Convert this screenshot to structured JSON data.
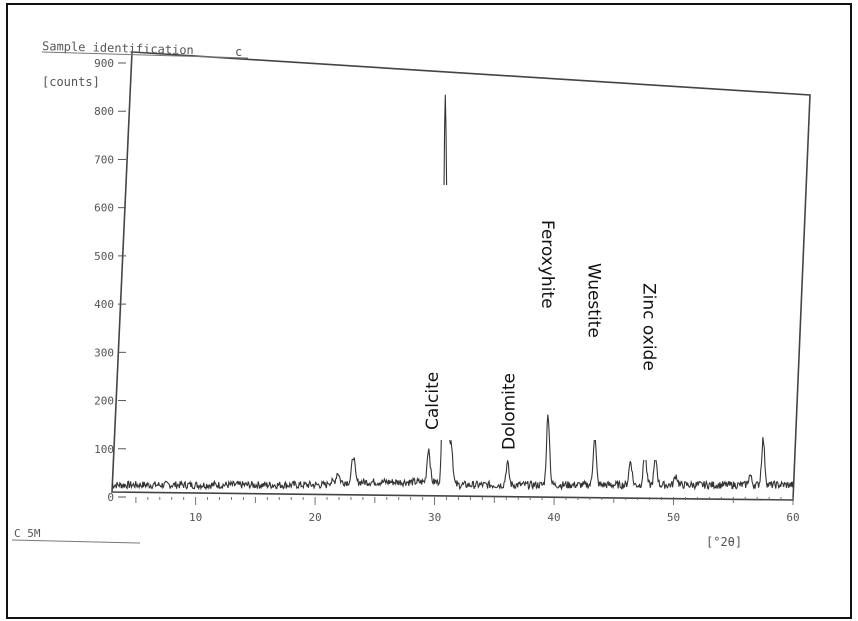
{
  "chart_data": {
    "type": "line",
    "title": "Sample identification",
    "title_suffix": "c",
    "ylabel": "[counts]",
    "xlabel": "[°2θ]",
    "corner_label": "C 5M",
    "xlim": [
      3,
      60
    ],
    "ylim": [
      0,
      900
    ],
    "y_ticks": [
      0,
      100,
      200,
      300,
      400,
      500,
      600,
      700,
      800,
      900
    ],
    "y_tick_labels": [
      "0",
      "100",
      "200",
      "300",
      "400",
      "500",
      "600",
      "700",
      "800",
      "900"
    ],
    "x_ticks": [
      10,
      20,
      30,
      40,
      50,
      60
    ],
    "x_tick_labels": [
      "10",
      "20",
      "30",
      "40",
      "50",
      "60"
    ],
    "grid": false,
    "series": [
      {
        "color": "#333333",
        "baseline": 25,
        "peaks": [
          {
            "x": 21.9,
            "y": 45
          },
          {
            "x": 23.2,
            "y": 80
          },
          {
            "x": 29.5,
            "y": 95
          },
          {
            "x": 30.9,
            "y": 820
          },
          {
            "x": 31.4,
            "y": 110
          },
          {
            "x": 36.1,
            "y": 70
          },
          {
            "x": 39.5,
            "y": 170
          },
          {
            "x": 43.4,
            "y": 125
          },
          {
            "x": 46.4,
            "y": 75
          },
          {
            "x": 47.6,
            "y": 90
          },
          {
            "x": 48.5,
            "y": 80
          },
          {
            "x": 50.2,
            "y": 45
          },
          {
            "x": 56.4,
            "y": 45
          },
          {
            "x": 57.5,
            "y": 120
          }
        ]
      }
    ],
    "annotations": [
      {
        "text": "Calcite",
        "x": 29.8
      },
      {
        "text": "Dolomite",
        "x": 36.2
      },
      {
        "text": "Feroxyhite",
        "x": 39.5
      },
      {
        "text": "Wuestite",
        "x": 43.4
      },
      {
        "text": "Zinc oxide",
        "x": 48.0
      }
    ]
  }
}
